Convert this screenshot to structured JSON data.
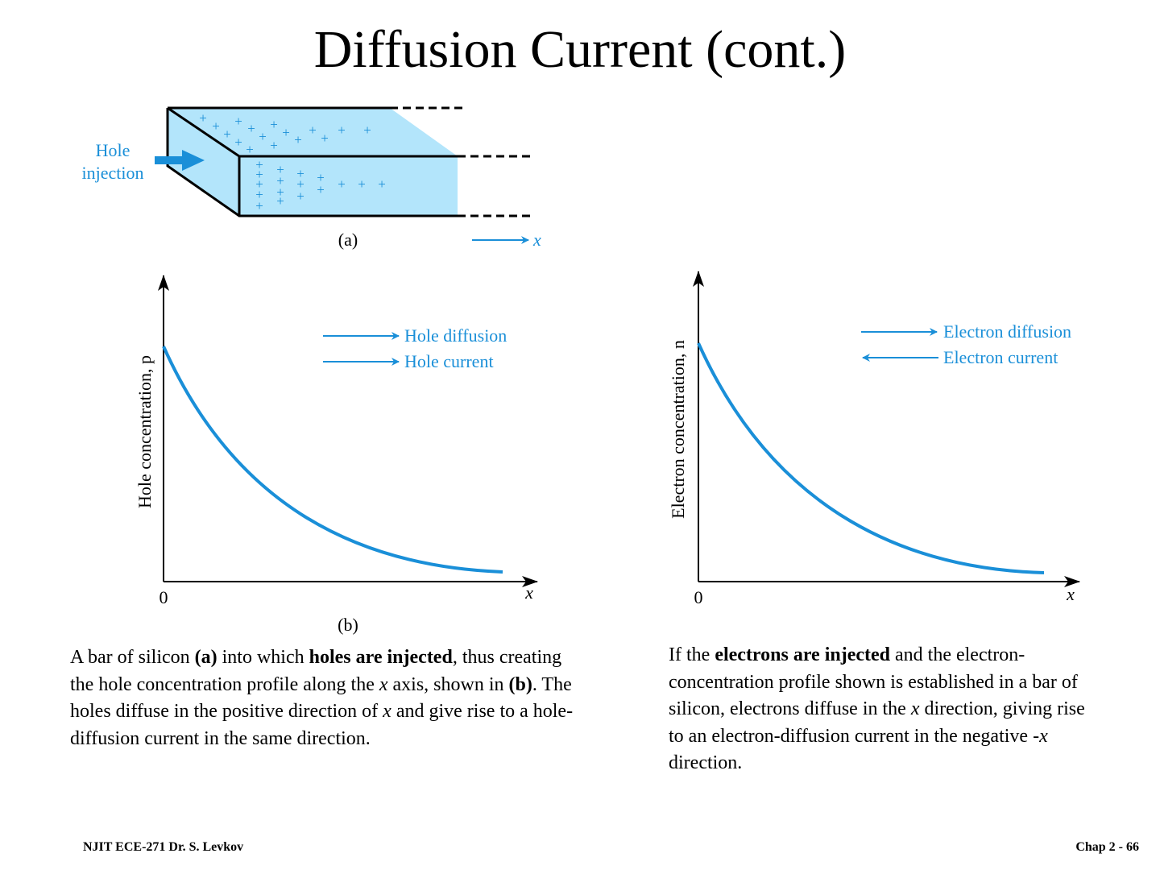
{
  "slide": {
    "title": "Diffusion Current (cont.)"
  },
  "figure_a": {
    "injection_label_line1": "Hole",
    "injection_label_line2": "injection",
    "caption": "(a)",
    "x_label": "x",
    "colors": {
      "semiconductor": "#b3e5fb",
      "accent": "#1a8fd8"
    }
  },
  "figure_b": {
    "ylabel": "Hole concentration, p",
    "origin": "0",
    "xlabel": "x",
    "legend": [
      "Hole diffusion",
      "Hole current"
    ],
    "caption": "(b)"
  },
  "figure_c": {
    "ylabel": "Electron concentration, n",
    "origin": "0",
    "xlabel": "x",
    "legend": [
      "Electron diffusion",
      "Electron current"
    ]
  },
  "left_text": {
    "t1": "A bar of silicon ",
    "t2": "(a)",
    "t3": " into which ",
    "t4": "holes are injected",
    "t5": ", thus creating the hole concentration profile along the ",
    "t6": "x",
    "t7": " axis, shown in ",
    "t8": "(b)",
    "t9": ". The holes diffuse in the positive direction of ",
    "t10": "x",
    "t11": " and give rise to a hole-diffusion current in the same direction."
  },
  "right_text": {
    "t1": "If the ",
    "t2": "electrons are injected",
    "t3": " and the electron-concentration profile shown is established in a bar of silicon, electrons diffuse in the ",
    "t4": "x",
    "t5": " direction, giving rise to an electron-diffusion current in the negative -",
    "t6": "x",
    "t7": " direction."
  },
  "footer": {
    "left": "NJIT ECE-271 Dr. S. Levkov",
    "right": "Chap 2 - 66"
  }
}
